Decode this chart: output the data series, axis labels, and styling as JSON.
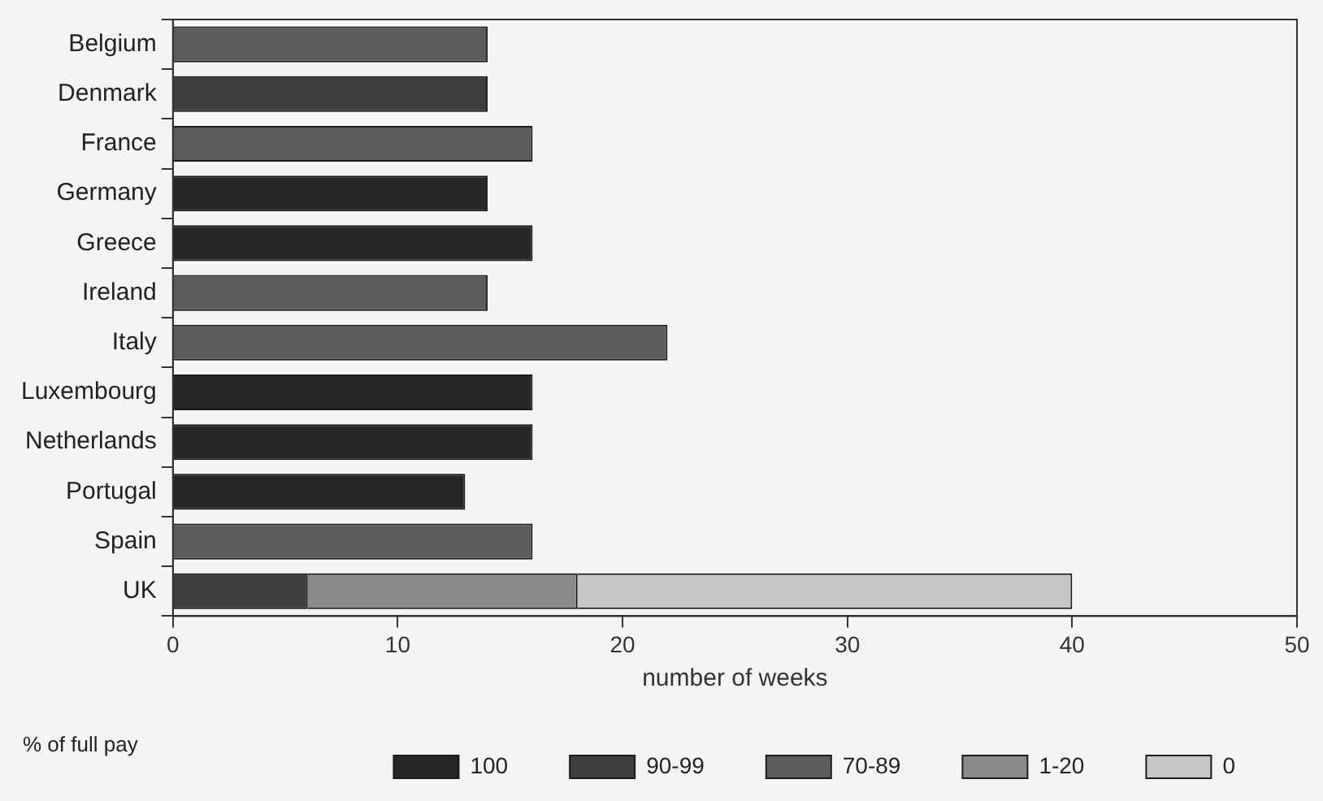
{
  "chart_data": {
    "type": "bar",
    "orientation": "horizontal",
    "stacked": true,
    "categories": [
      "Belgium",
      "Denmark",
      "France",
      "Germany",
      "Greece",
      "Ireland",
      "Italy",
      "Luxembourg",
      "Netherlands",
      "Portugal",
      "Spain",
      "UK"
    ],
    "series": [
      {
        "name": "100",
        "color": "#262626",
        "values": [
          null,
          null,
          null,
          14,
          16,
          null,
          null,
          16,
          16,
          13,
          null,
          null
        ]
      },
      {
        "name": "90-99",
        "color": "#3e3e3e",
        "values": [
          null,
          14,
          null,
          null,
          null,
          null,
          null,
          null,
          null,
          null,
          null,
          6
        ]
      },
      {
        "name": "70-89",
        "color": "#5c5c5c",
        "values": [
          14,
          null,
          16,
          null,
          null,
          14,
          22,
          null,
          null,
          null,
          16,
          null
        ]
      },
      {
        "name": "1-20",
        "color": "#8a8a8a",
        "values": [
          null,
          null,
          null,
          null,
          null,
          null,
          null,
          null,
          null,
          null,
          null,
          12
        ]
      },
      {
        "name": "0",
        "color": "#c6c6c6",
        "values": [
          null,
          null,
          null,
          null,
          null,
          null,
          null,
          null,
          null,
          null,
          null,
          22
        ]
      }
    ],
    "xlim": [
      0,
      50
    ],
    "xticks": [
      0,
      10,
      20,
      30,
      40,
      50
    ],
    "xlabel": "number of weeks",
    "legend": "bottom",
    "legend_title": "% of full pay",
    "grid": false
  }
}
